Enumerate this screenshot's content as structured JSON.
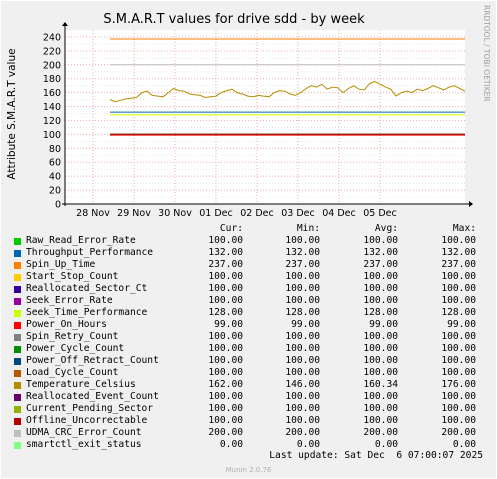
{
  "chart_data": {
    "type": "line",
    "title": "S.M.A.R.T values for drive sdd - by week",
    "ylabel": "Attribute S.M.A.R.T value",
    "side_label": "RRDTOOL / TOBI OETIKER",
    "ylim": [
      0,
      250
    ],
    "yticks": [
      0,
      20,
      40,
      60,
      80,
      100,
      120,
      140,
      160,
      180,
      200,
      220,
      240
    ],
    "xticks": [
      "28 Nov",
      "29 Nov",
      "30 Nov",
      "01 Dec",
      "02 Dec",
      "03 Dec",
      "04 Dec",
      "05 Dec"
    ],
    "grid": true,
    "series": [
      {
        "name": "Raw_Read_Error_Rate",
        "color": "#00cc00",
        "cur": "100.00",
        "min": "100.00",
        "avg": "100.00",
        "max": "100.00"
      },
      {
        "name": "Throughput_Performance",
        "color": "#0066b3",
        "cur": "132.00",
        "min": "132.00",
        "avg": "132.00",
        "max": "132.00"
      },
      {
        "name": "Spin_Up_Time",
        "color": "#ff8000",
        "cur": "237.00",
        "min": "237.00",
        "avg": "237.00",
        "max": "237.00"
      },
      {
        "name": "Start_Stop_Count",
        "color": "#ffcc00",
        "cur": "100.00",
        "min": "100.00",
        "avg": "100.00",
        "max": "100.00"
      },
      {
        "name": "Reallocated_Sector_Ct",
        "color": "#330099",
        "cur": "100.00",
        "min": "100.00",
        "avg": "100.00",
        "max": "100.00"
      },
      {
        "name": "Seek_Error_Rate",
        "color": "#990099",
        "cur": "100.00",
        "min": "100.00",
        "avg": "100.00",
        "max": "100.00"
      },
      {
        "name": "Seek_Time_Performance",
        "color": "#ccff00",
        "cur": "128.00",
        "min": "128.00",
        "avg": "128.00",
        "max": "128.00"
      },
      {
        "name": "Power_On_Hours",
        "color": "#ff0000",
        "cur": "99.00",
        "min": "99.00",
        "avg": "99.00",
        "max": "99.00"
      },
      {
        "name": "Spin_Retry_Count",
        "color": "#808080",
        "cur": "100.00",
        "min": "100.00",
        "avg": "100.00",
        "max": "100.00"
      },
      {
        "name": "Power_Cycle_Count",
        "color": "#008f00",
        "cur": "100.00",
        "min": "100.00",
        "avg": "100.00",
        "max": "100.00"
      },
      {
        "name": "Power_Off_Retract_Count",
        "color": "#00487d",
        "cur": "100.00",
        "min": "100.00",
        "avg": "100.00",
        "max": "100.00"
      },
      {
        "name": "Load_Cycle_Count",
        "color": "#b35a00",
        "cur": "100.00",
        "min": "100.00",
        "avg": "100.00",
        "max": "100.00"
      },
      {
        "name": "Temperature_Celsius",
        "color": "#b38f00",
        "cur": "162.00",
        "min": "146.00",
        "avg": "160.34",
        "max": "176.00"
      },
      {
        "name": "Reallocated_Event_Count",
        "color": "#6b006b",
        "cur": "100.00",
        "min": "100.00",
        "avg": "100.00",
        "max": "100.00"
      },
      {
        "name": "Current_Pending_Sector",
        "color": "#8fb300",
        "cur": "100.00",
        "min": "100.00",
        "avg": "100.00",
        "max": "100.00"
      },
      {
        "name": "Offline_Uncorrectable",
        "color": "#b30000",
        "cur": "100.00",
        "min": "100.00",
        "avg": "100.00",
        "max": "100.00"
      },
      {
        "name": "UDMA_CRC_Error_Count",
        "color": "#bebebe",
        "cur": "200.00",
        "min": "200.00",
        "avg": "200.00",
        "max": "200.00"
      },
      {
        "name": "smartctl_exit_status",
        "color": "#80ff80",
        "cur": "0.00",
        "min": "0.00",
        "avg": "0.00",
        "max": "0.00"
      }
    ],
    "temperature_trace": [
      150,
      147,
      149,
      151,
      152,
      153,
      160,
      162,
      156,
      155,
      154,
      160,
      166,
      163,
      162,
      158,
      157,
      156,
      153,
      154,
      155,
      160,
      163,
      165,
      160,
      158,
      155,
      154,
      156,
      155,
      154,
      160,
      163,
      162,
      158,
      156,
      160,
      166,
      170,
      168,
      172,
      165,
      168,
      167,
      160,
      166,
      170,
      165,
      164,
      173,
      176,
      172,
      168,
      165,
      155,
      160,
      162,
      160,
      165,
      163,
      166,
      170,
      167,
      164,
      168,
      170,
      166,
      162
    ]
  },
  "legend_header": {
    "cur": "Cur:",
    "min": "Min:",
    "avg": "Avg:",
    "max": "Max:"
  },
  "last_update": "Last update: Sat Dec  6 07:00:07 2025",
  "munin_version": "Munin 2.0.76"
}
